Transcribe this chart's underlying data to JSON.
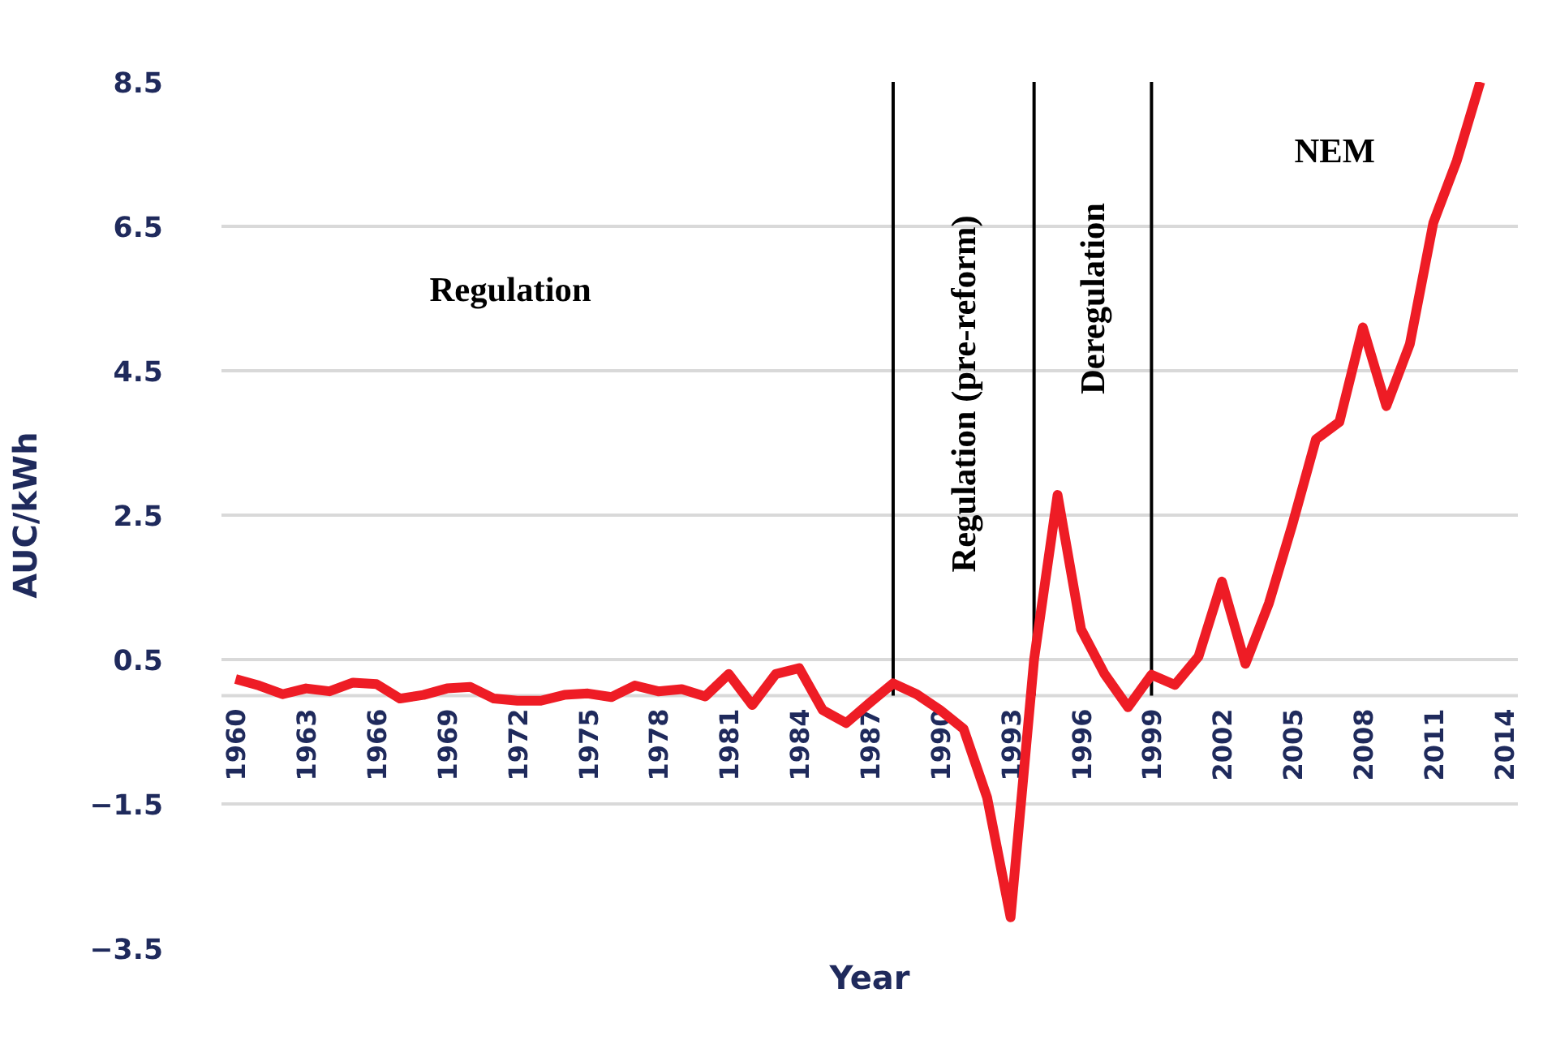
{
  "chart_data": {
    "type": "line",
    "xlabel": "Year",
    "ylabel": "AUC/kWh",
    "x": [
      1960,
      1961,
      1962,
      1963,
      1964,
      1965,
      1966,
      1967,
      1968,
      1969,
      1970,
      1971,
      1972,
      1973,
      1974,
      1975,
      1976,
      1977,
      1978,
      1979,
      1980,
      1981,
      1982,
      1983,
      1984,
      1985,
      1986,
      1987,
      1988,
      1989,
      1990,
      1991,
      1992,
      1993,
      1994,
      1995,
      1996,
      1997,
      1998,
      1999,
      2000,
      2001,
      2002,
      2003,
      2004,
      2005,
      2006,
      2007,
      2008,
      2009,
      2010,
      2011,
      2012,
      2013
    ],
    "series": [
      {
        "color": "#ee1c25",
        "values": [
          0.23,
          0.14,
          0.02,
          0.1,
          0.06,
          0.18,
          0.16,
          -0.04,
          0.01,
          0.1,
          0.12,
          -0.04,
          -0.07,
          -0.07,
          0.01,
          0.03,
          -0.02,
          0.14,
          0.06,
          0.09,
          -0.01,
          0.3,
          -0.13,
          0.3,
          0.38,
          -0.2,
          -0.38,
          -0.1,
          0.17,
          0.02,
          -0.2,
          -0.46,
          -1.41,
          -3.07,
          0.5,
          2.78,
          0.92,
          0.3,
          -0.16,
          0.29,
          0.15,
          0.54,
          1.58,
          0.44,
          1.28,
          2.37,
          3.55,
          3.79,
          5.1,
          4.01,
          4.87,
          6.55,
          7.41,
          8.5
        ]
      }
    ],
    "xlim": [
      1959.4,
      2014.6
    ],
    "ylim": [
      -3.5,
      8.5
    ],
    "xticks": [
      1960,
      1963,
      1966,
      1969,
      1972,
      1975,
      1978,
      1981,
      1984,
      1987,
      1990,
      1993,
      1996,
      1999,
      2002,
      2005,
      2008,
      2011,
      2014
    ],
    "yticks": [
      -3.5,
      -1.5,
      0.5,
      2.5,
      4.5,
      6.5,
      8.5
    ],
    "grid": "y",
    "marker": "none",
    "line_style": "solid",
    "ref_lines": [
      {
        "axis": "x",
        "value": 1988,
        "color": "#000000"
      },
      {
        "axis": "x",
        "value": 1994,
        "color": "#000000"
      },
      {
        "axis": "x",
        "value": 1999,
        "color": "#000000"
      }
    ],
    "annotations": [
      "Regulation",
      "Regulation (pre-reform)",
      "Deregulation",
      "NEM"
    ]
  }
}
